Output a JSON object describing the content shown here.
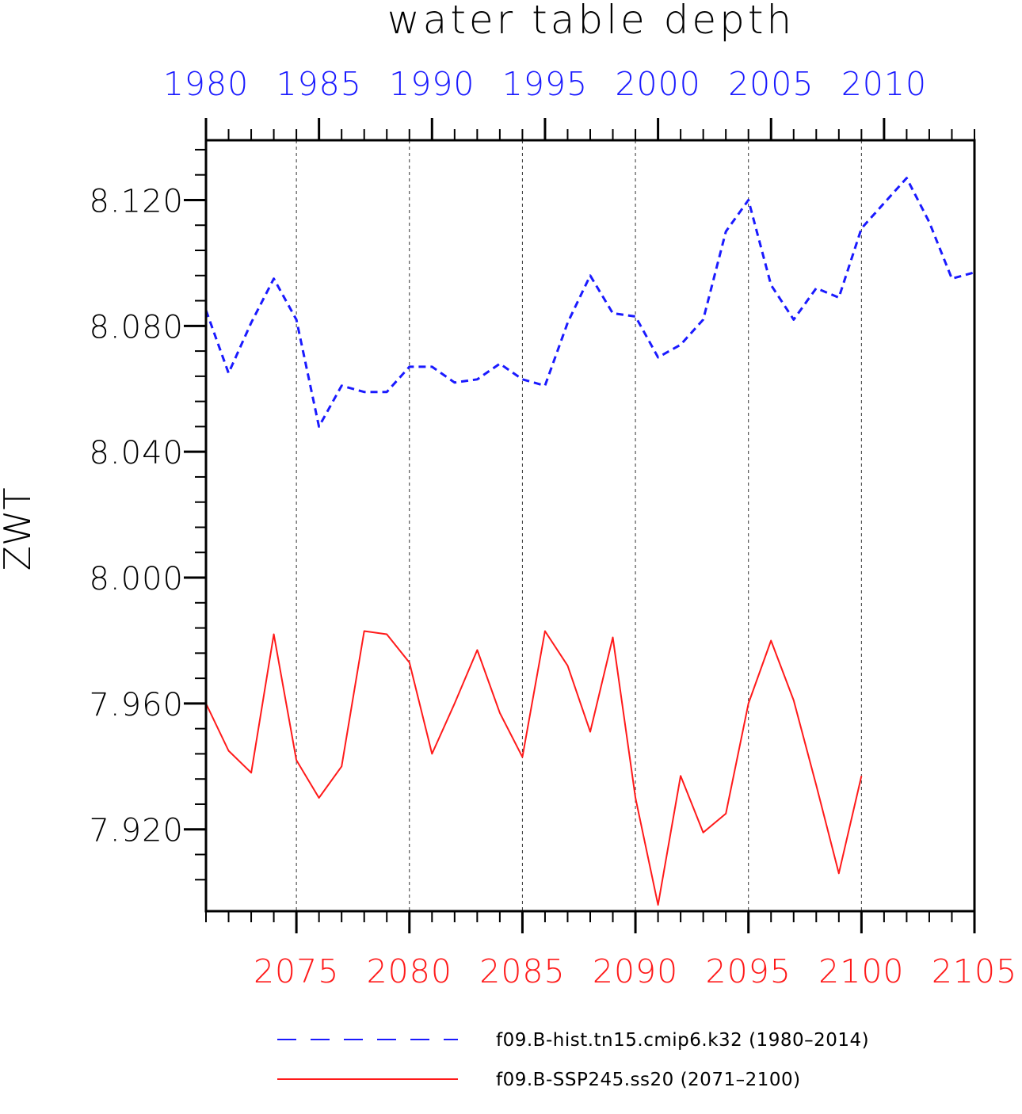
{
  "chart_data": {
    "type": "line",
    "title": "water table depth",
    "ylabel": "ZWT",
    "ylim": [
      7.894,
      8.139
    ],
    "y_ticks": [
      "8.120",
      "8.080",
      "8.040",
      "8.000",
      "7.960",
      "7.920"
    ],
    "y_tick_values": [
      8.12,
      8.08,
      8.04,
      8.0,
      7.96,
      7.92
    ],
    "top_axis": {
      "range": [
        1980,
        2014
      ],
      "tick_labels": [
        "1980",
        "1985",
        "1990",
        "1995",
        "2000",
        "2005",
        "2010"
      ],
      "color": "#1a1aff"
    },
    "bottom_axis": {
      "range": [
        2071,
        2105
      ],
      "tick_labels": [
        "2075",
        "2080",
        "2085",
        "2090",
        "2095",
        "2100",
        "2105"
      ],
      "color": "#ff1a1a"
    },
    "grid": "vertical dashed at 5-year ticks",
    "legend_position": "bottom",
    "series": [
      {
        "name": "f09.B-hist.tn15.cmip6.k32 (1980–2014)",
        "axis": "top",
        "color": "#1a1aff",
        "style": "dashed",
        "x": [
          1980,
          1981,
          1982,
          1983,
          1984,
          1985,
          1986,
          1987,
          1988,
          1989,
          1990,
          1991,
          1992,
          1993,
          1994,
          1995,
          1996,
          1997,
          1998,
          1999,
          2000,
          2001,
          2002,
          2003,
          2004,
          2005,
          2006,
          2007,
          2008,
          2009,
          2010,
          2011,
          2012,
          2013,
          2014
        ],
        "values": [
          8.085,
          8.065,
          8.081,
          8.095,
          8.082,
          8.048,
          8.061,
          8.059,
          8.059,
          8.067,
          8.067,
          8.062,
          8.063,
          8.068,
          8.063,
          8.061,
          8.081,
          8.096,
          8.084,
          8.083,
          8.07,
          8.074,
          8.082,
          8.11,
          8.12,
          8.093,
          8.082,
          8.092,
          8.089,
          8.111,
          8.119,
          8.127,
          8.113,
          8.095,
          8.097
        ]
      },
      {
        "name": "f09.B-SSP245.ss20 (2071–2100)",
        "axis": "bottom",
        "color": "#ff1a1a",
        "style": "solid",
        "x": [
          2071,
          2072,
          2073,
          2074,
          2075,
          2076,
          2077,
          2078,
          2079,
          2080,
          2081,
          2082,
          2083,
          2084,
          2085,
          2086,
          2087,
          2088,
          2089,
          2090,
          2091,
          2092,
          2093,
          2094,
          2095,
          2096,
          2097,
          2098,
          2099,
          2100
        ],
        "values": [
          7.96,
          7.945,
          7.938,
          7.982,
          7.942,
          7.93,
          7.94,
          7.983,
          7.982,
          7.973,
          7.944,
          7.96,
          7.977,
          7.957,
          7.943,
          7.983,
          7.972,
          7.951,
          7.981,
          7.93,
          7.896,
          7.937,
          7.919,
          7.925,
          7.96,
          7.98,
          7.961,
          7.934,
          7.906,
          7.937
        ]
      }
    ]
  }
}
